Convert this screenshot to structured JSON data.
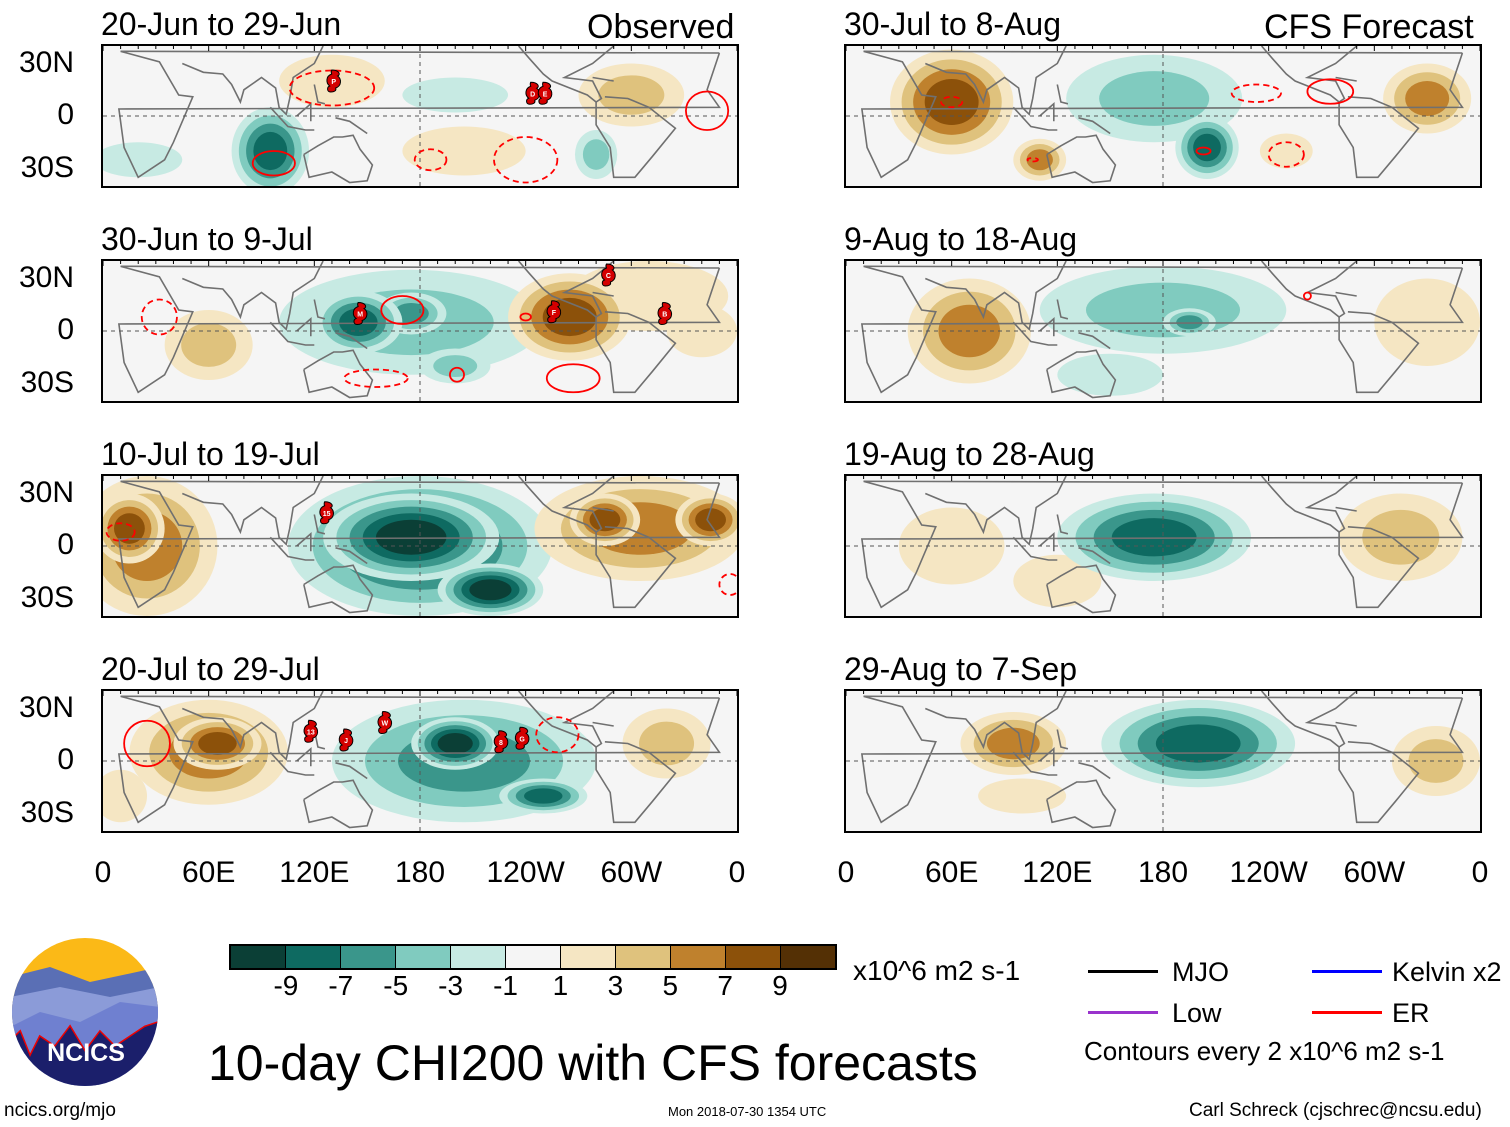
{
  "header": {
    "observed_label": "Observed",
    "forecast_label": "CFS Forecast"
  },
  "axes": {
    "y_ticks": [
      "30N",
      "0",
      "30S"
    ],
    "x_ticks": [
      "0",
      "60E",
      "120E",
      "180",
      "120W",
      "60W",
      "0"
    ],
    "lat_range": [
      -40,
      40
    ],
    "lon_range": [
      0,
      360
    ]
  },
  "colors": {
    "levels": [
      -9,
      -7,
      -5,
      -3,
      -1,
      1,
      3,
      5,
      7,
      9
    ],
    "fill": [
      "#0b3f36",
      "#0e6a61",
      "#3a968b",
      "#80cbbf",
      "#c7eae3",
      "#f5f5f5",
      "#f5e6c3",
      "#dfc27d",
      "#bf812d",
      "#8c510a",
      "#543005"
    ],
    "contour": "#ff0000",
    "storm": "#d40000",
    "coast": "#707070"
  },
  "panels": [
    {
      "title": "20-Jun to 29-Jun",
      "kind": "observed",
      "anomalies": [
        {
          "lon": 130,
          "lat": 20,
          "rlon": 30,
          "rlat": 15,
          "peak": 3
        },
        {
          "lon": 205,
          "lat": -20,
          "rlon": 35,
          "rlat": 14,
          "peak": 3
        },
        {
          "lon": 300,
          "lat": 12,
          "rlon": 30,
          "rlat": 18,
          "peak": 4
        },
        {
          "lon": 200,
          "lat": 12,
          "rlon": 30,
          "rlat": 10,
          "peak": -2
        },
        {
          "lon": 95,
          "lat": -20,
          "rlon": 22,
          "rlat": 25,
          "peak": -7
        },
        {
          "lon": 280,
          "lat": -22,
          "rlon": 12,
          "rlat": 14,
          "peak": -4
        },
        {
          "lon": 20,
          "lat": -25,
          "rlon": 25,
          "rlat": 10,
          "peak": -2
        }
      ],
      "contours": [
        {
          "lon": 130,
          "lat": 16,
          "rlon": 24,
          "rlat": 10,
          "dashed": true
        },
        {
          "lon": 186,
          "lat": -25,
          "rlon": 9,
          "rlat": 6,
          "dashed": true
        },
        {
          "lon": 240,
          "lat": -25,
          "rlon": 18,
          "rlat": 13,
          "dashed": true
        },
        {
          "lon": 97,
          "lat": -27,
          "rlon": 12,
          "rlat": 7,
          "dashed": false
        },
        {
          "lon": 343,
          "lat": 3,
          "rlon": 12,
          "rlat": 11,
          "dashed": false
        }
      ],
      "storms": [
        {
          "label": "P",
          "lon": 131,
          "lat": 20
        },
        {
          "label": "D",
          "lon": 244,
          "lat": 13
        },
        {
          "label": "E",
          "lon": 251,
          "lat": 13
        }
      ]
    },
    {
      "title": "30-Jun to 9-Jul",
      "kind": "observed",
      "anomalies": [
        {
          "lon": 175,
          "lat": 5,
          "rlon": 75,
          "rlat": 30,
          "peak": -3
        },
        {
          "lon": 145,
          "lat": 5,
          "rlon": 25,
          "rlat": 18,
          "peak": -7
        },
        {
          "lon": 175,
          "lat": 10,
          "rlon": 20,
          "rlat": 12,
          "peak": -5
        },
        {
          "lon": 200,
          "lat": -20,
          "rlon": 20,
          "rlat": 10,
          "peak": -4
        },
        {
          "lon": 265,
          "lat": 8,
          "rlon": 35,
          "rlat": 25,
          "peak": 9
        },
        {
          "lon": 310,
          "lat": 20,
          "rlon": 45,
          "rlat": 20,
          "peak": 3
        },
        {
          "lon": 60,
          "lat": -8,
          "rlon": 25,
          "rlat": 20,
          "peak": 5
        },
        {
          "lon": 340,
          "lat": 0,
          "rlon": 20,
          "rlat": 15,
          "peak": 3
        }
      ],
      "contours": [
        {
          "lon": 170,
          "lat": 12,
          "rlon": 12,
          "rlat": 8,
          "dashed": false
        },
        {
          "lon": 240,
          "lat": 8,
          "rlon": 3,
          "rlat": 2,
          "dashed": false
        },
        {
          "lon": 267,
          "lat": -27,
          "rlon": 15,
          "rlat": 8,
          "dashed": false
        },
        {
          "lon": 155,
          "lat": -27,
          "rlon": 18,
          "rlat": 5,
          "dashed": true
        },
        {
          "lon": 201,
          "lat": -25,
          "rlon": 4,
          "rlat": 4,
          "dashed": false
        },
        {
          "lon": 32,
          "lat": 8,
          "rlon": 10,
          "rlat": 10,
          "dashed": true
        }
      ],
      "storms": [
        {
          "label": "M",
          "lon": 146,
          "lat": 10
        },
        {
          "label": "F",
          "lon": 256,
          "lat": 11
        },
        {
          "label": "C",
          "lon": 287,
          "lat": 32
        },
        {
          "label": "B",
          "lon": 319,
          "lat": 10
        }
      ]
    },
    {
      "title": "10-Jul to 19-Jul",
      "kind": "observed",
      "anomalies": [
        {
          "lon": 25,
          "lat": 0,
          "rlon": 40,
          "rlat": 40,
          "peak": 7
        },
        {
          "lon": 15,
          "lat": 10,
          "rlon": 20,
          "rlat": 20,
          "peak": 9
        },
        {
          "lon": 180,
          "lat": 0,
          "rlon": 75,
          "rlat": 40,
          "peak": -7
        },
        {
          "lon": 175,
          "lat": 5,
          "rlon": 50,
          "rlat": 25,
          "peak": -11
        },
        {
          "lon": 220,
          "lat": -25,
          "rlon": 30,
          "rlat": 15,
          "peak": -9
        },
        {
          "lon": 305,
          "lat": 10,
          "rlon": 60,
          "rlat": 30,
          "peak": 7
        },
        {
          "lon": 285,
          "lat": 15,
          "rlon": 20,
          "rlat": 15,
          "peak": 9
        },
        {
          "lon": 345,
          "lat": 15,
          "rlon": 20,
          "rlat": 15,
          "peak": 9
        }
      ],
      "contours": [
        {
          "lon": 10,
          "lat": 8,
          "rlon": 8,
          "rlat": 5,
          "dashed": true
        },
        {
          "lon": 356,
          "lat": -22,
          "rlon": 6,
          "rlat": 6,
          "dashed": true
        }
      ],
      "storms": [
        {
          "label": "15",
          "lon": 127,
          "lat": 19
        }
      ]
    },
    {
      "title": "20-Jul to 29-Jul",
      "kind": "observed",
      "anomalies": [
        {
          "lon": 60,
          "lat": 5,
          "rlon": 45,
          "rlat": 30,
          "peak": 7
        },
        {
          "lon": 65,
          "lat": 10,
          "rlon": 25,
          "rlat": 15,
          "peak": 9
        },
        {
          "lon": 205,
          "lat": 0,
          "rlon": 75,
          "rlat": 35,
          "peak": -5
        },
        {
          "lon": 200,
          "lat": 10,
          "rlon": 25,
          "rlat": 15,
          "peak": -9
        },
        {
          "lon": 250,
          "lat": -20,
          "rlon": 25,
          "rlat": 10,
          "peak": -7
        },
        {
          "lon": 320,
          "lat": 10,
          "rlon": 25,
          "rlat": 20,
          "peak": 5
        },
        {
          "lon": 10,
          "lat": -20,
          "rlon": 15,
          "rlat": 15,
          "peak": 3
        }
      ],
      "contours": [
        {
          "lon": 25,
          "lat": 10,
          "rlon": 13,
          "rlat": 13,
          "dashed": false
        },
        {
          "lon": 258,
          "lat": 15,
          "rlon": 12,
          "rlat": 10,
          "dashed": true
        }
      ],
      "storms": [
        {
          "label": "13",
          "lon": 118,
          "lat": 17
        },
        {
          "label": "J",
          "lon": 138,
          "lat": 12
        },
        {
          "label": "W",
          "lon": 160,
          "lat": 22
        },
        {
          "label": "8",
          "lon": 226,
          "lat": 11
        },
        {
          "label": "G",
          "lon": 238,
          "lat": 13
        }
      ]
    },
    {
      "title": "30-Jul to 8-Aug",
      "kind": "forecast",
      "anomalies": [
        {
          "lon": 60,
          "lat": 8,
          "rlon": 35,
          "rlat": 30,
          "peak": 9
        },
        {
          "lon": 110,
          "lat": -25,
          "rlon": 15,
          "rlat": 12,
          "peak": 7
        },
        {
          "lon": 330,
          "lat": 10,
          "rlon": 25,
          "rlat": 20,
          "peak": 7
        },
        {
          "lon": 175,
          "lat": 10,
          "rlon": 50,
          "rlat": 25,
          "peak": -3
        },
        {
          "lon": 205,
          "lat": -18,
          "rlon": 18,
          "rlat": 18,
          "peak": -7
        },
        {
          "lon": 250,
          "lat": -20,
          "rlon": 15,
          "rlat": 10,
          "peak": 3
        }
      ],
      "contours": [
        {
          "lon": 60,
          "lat": 8,
          "rlon": 6,
          "rlat": 3,
          "dashed": true
        },
        {
          "lon": 106,
          "lat": -25,
          "rlon": 3,
          "rlat": 1,
          "dashed": true
        },
        {
          "lon": 233,
          "lat": 13,
          "rlon": 14,
          "rlat": 5,
          "dashed": true
        },
        {
          "lon": 275,
          "lat": 14,
          "rlon": 13,
          "rlat": 7,
          "dashed": false
        },
        {
          "lon": 203,
          "lat": -20,
          "rlon": 4,
          "rlat": 2,
          "dashed": false
        },
        {
          "lon": 250,
          "lat": -22,
          "rlon": 10,
          "rlat": 7,
          "dashed": true
        }
      ],
      "storms": []
    },
    {
      "title": "9-Aug to 18-Aug",
      "kind": "forecast",
      "anomalies": [
        {
          "lon": 70,
          "lat": 0,
          "rlon": 35,
          "rlat": 30,
          "peak": 7
        },
        {
          "lon": 180,
          "lat": 12,
          "rlon": 70,
          "rlat": 25,
          "peak": -3
        },
        {
          "lon": 195,
          "lat": 5,
          "rlon": 15,
          "rlat": 8,
          "peak": -5
        },
        {
          "lon": 330,
          "lat": 5,
          "rlon": 30,
          "rlat": 25,
          "peak": 3
        },
        {
          "lon": 150,
          "lat": -25,
          "rlon": 30,
          "rlat": 12,
          "peak": -2
        }
      ],
      "contours": [
        {
          "lon": 262,
          "lat": 20,
          "rlon": 2,
          "rlat": 2,
          "dashed": false
        }
      ],
      "storms": []
    },
    {
      "title": "19-Aug to 28-Aug",
      "kind": "forecast",
      "anomalies": [
        {
          "lon": 175,
          "lat": 5,
          "rlon": 55,
          "rlat": 25,
          "peak": -7
        },
        {
          "lon": 60,
          "lat": 0,
          "rlon": 30,
          "rlat": 22,
          "peak": 3
        },
        {
          "lon": 315,
          "lat": 5,
          "rlon": 35,
          "rlat": 25,
          "peak": 5
        },
        {
          "lon": 120,
          "lat": -20,
          "rlon": 25,
          "rlat": 15,
          "peak": 3
        }
      ],
      "contours": [],
      "storms": []
    },
    {
      "title": "29-Aug to 7-Sep",
      "kind": "forecast",
      "anomalies": [
        {
          "lon": 200,
          "lat": 10,
          "rlon": 55,
          "rlat": 25,
          "peak": -7
        },
        {
          "lon": 95,
          "lat": 10,
          "rlon": 30,
          "rlat": 18,
          "peak": 7
        },
        {
          "lon": 335,
          "lat": 0,
          "rlon": 25,
          "rlat": 20,
          "peak": 5
        },
        {
          "lon": 100,
          "lat": -20,
          "rlon": 25,
          "rlat": 10,
          "peak": 3
        }
      ],
      "contours": [],
      "storms": []
    }
  ],
  "colorbar": {
    "labels": [
      "-9",
      "-7",
      "-5",
      "-3",
      "-1",
      "1",
      "3",
      "5",
      "7",
      "9"
    ],
    "units": "x10^6 m2 s-1"
  },
  "legend": {
    "items": [
      {
        "label": "MJO",
        "color": "#000000"
      },
      {
        "label": "Kelvin x2",
        "color": "#0000ff"
      },
      {
        "label": "Low",
        "color": "#9933cc"
      },
      {
        "label": "ER",
        "color": "#ff0000"
      }
    ],
    "contour_note": "Contours every 2 x10^6 m2 s-1"
  },
  "footer": {
    "title": "10-day CHI200 with CFS forecasts",
    "logo_text": "NCICS",
    "url": "ncics.org/mjo",
    "timestamp": "Mon 2018-07-30 1354 UTC",
    "credit": "Carl Schreck (cjschrec@ncsu.edu)"
  }
}
